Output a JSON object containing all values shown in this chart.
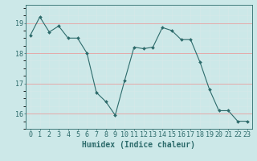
{
  "x": [
    0,
    1,
    2,
    3,
    4,
    5,
    6,
    7,
    8,
    9,
    10,
    11,
    12,
    13,
    14,
    15,
    16,
    17,
    18,
    19,
    20,
    21,
    22,
    23
  ],
  "y": [
    18.6,
    19.2,
    18.7,
    18.9,
    18.5,
    18.5,
    18.0,
    16.7,
    16.4,
    15.95,
    17.1,
    18.2,
    18.15,
    18.2,
    18.85,
    18.75,
    18.45,
    18.45,
    17.7,
    16.8,
    16.1,
    16.1,
    15.75,
    15.75
  ],
  "line_color": "#2d6b6b",
  "marker": "D",
  "marker_size": 2.0,
  "bg_color": "#cce8e8",
  "grid_major_color": "#f0b8b8",
  "grid_minor_color": "#d8e8e8",
  "xlabel": "Humidex (Indice chaleur)",
  "xlabel_fontsize": 7,
  "tick_fontsize": 6,
  "ylim": [
    15.5,
    19.6
  ],
  "yticks": [
    16,
    17,
    18,
    19
  ],
  "xticks": [
    0,
    1,
    2,
    3,
    4,
    5,
    6,
    7,
    8,
    9,
    10,
    11,
    12,
    13,
    14,
    15,
    16,
    17,
    18,
    19,
    20,
    21,
    22,
    23
  ]
}
